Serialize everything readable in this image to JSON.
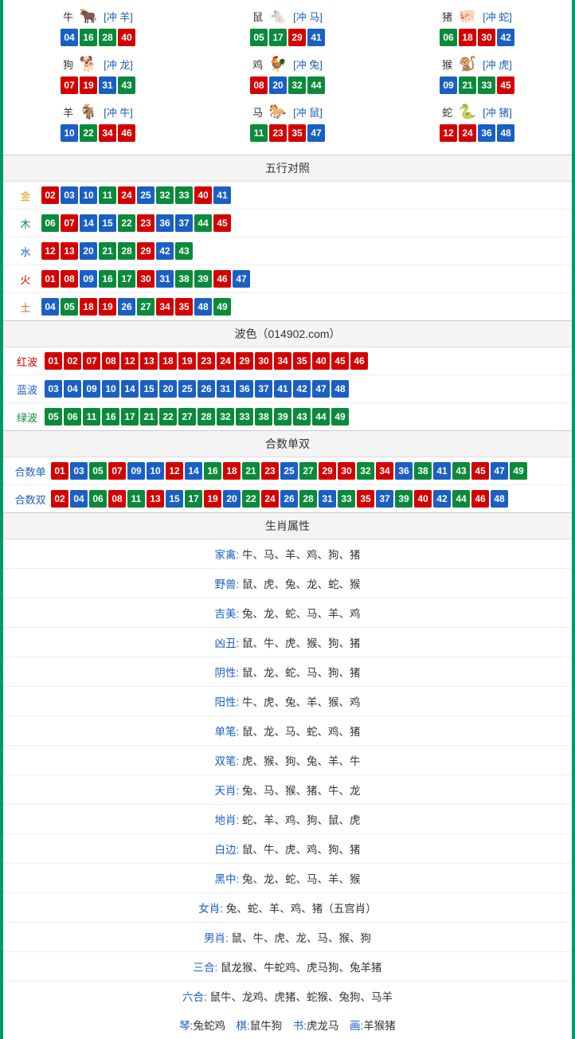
{
  "colors": {
    "border": "#009966",
    "red": "#d40000",
    "blue": "#1a5fc4",
    "green": "#0a8a3a",
    "header_bg": "#f4f4f4"
  },
  "ball_color_map": {
    "01": "red",
    "02": "red",
    "07": "red",
    "08": "red",
    "12": "red",
    "13": "red",
    "18": "red",
    "19": "red",
    "23": "red",
    "24": "red",
    "29": "red",
    "30": "red",
    "34": "red",
    "35": "red",
    "40": "red",
    "45": "red",
    "46": "red",
    "03": "blue",
    "04": "blue",
    "09": "blue",
    "10": "blue",
    "14": "blue",
    "15": "blue",
    "20": "blue",
    "25": "blue",
    "26": "blue",
    "31": "blue",
    "36": "blue",
    "37": "blue",
    "41": "blue",
    "42": "blue",
    "47": "blue",
    "48": "blue",
    "05": "green",
    "06": "green",
    "11": "green",
    "16": "green",
    "17": "green",
    "21": "green",
    "22": "green",
    "27": "green",
    "28": "green",
    "32": "green",
    "33": "green",
    "38": "green",
    "39": "green",
    "43": "green",
    "44": "green",
    "49": "green"
  },
  "zodiac": [
    {
      "name": "牛",
      "emoji": "🐂",
      "conflict": "[冲 羊]",
      "balls": [
        "04",
        "16",
        "28",
        "40"
      ]
    },
    {
      "name": "鼠",
      "emoji": "🐁",
      "conflict": "[冲 马]",
      "balls": [
        "05",
        "17",
        "29",
        "41"
      ]
    },
    {
      "name": "猪",
      "emoji": "🐖",
      "conflict": "[冲 蛇]",
      "balls": [
        "06",
        "18",
        "30",
        "42"
      ]
    },
    {
      "name": "狗",
      "emoji": "🐕",
      "conflict": "[冲 龙]",
      "balls": [
        "07",
        "19",
        "31",
        "43"
      ]
    },
    {
      "name": "鸡",
      "emoji": "🐓",
      "conflict": "[冲 兔]",
      "balls": [
        "08",
        "20",
        "32",
        "44"
      ]
    },
    {
      "name": "猴",
      "emoji": "🐒",
      "conflict": "[冲 虎]",
      "balls": [
        "09",
        "21",
        "33",
        "45"
      ]
    },
    {
      "name": "羊",
      "emoji": "🐐",
      "conflict": "[冲 牛]",
      "balls": [
        "10",
        "22",
        "34",
        "46"
      ]
    },
    {
      "name": "马",
      "emoji": "🐎",
      "conflict": "[冲 鼠]",
      "balls": [
        "11",
        "23",
        "35",
        "47"
      ]
    },
    {
      "name": "蛇",
      "emoji": "🐍",
      "conflict": "[冲 猪]",
      "balls": [
        "12",
        "24",
        "36",
        "48"
      ]
    }
  ],
  "wuxing": {
    "title": "五行对照",
    "rows": [
      {
        "label": "金",
        "cls": "lbl-gold",
        "balls": [
          "02",
          "03",
          "10",
          "11",
          "24",
          "25",
          "32",
          "33",
          "40",
          "41"
        ]
      },
      {
        "label": "木",
        "cls": "lbl-wood",
        "balls": [
          "06",
          "07",
          "14",
          "15",
          "22",
          "23",
          "36",
          "37",
          "44",
          "45"
        ]
      },
      {
        "label": "水",
        "cls": "lbl-water",
        "balls": [
          "12",
          "13",
          "20",
          "21",
          "28",
          "29",
          "42",
          "43"
        ]
      },
      {
        "label": "火",
        "cls": "lbl-fire",
        "balls": [
          "01",
          "08",
          "09",
          "16",
          "17",
          "30",
          "31",
          "38",
          "39",
          "46",
          "47"
        ]
      },
      {
        "label": "土",
        "cls": "lbl-earth",
        "balls": [
          "04",
          "05",
          "18",
          "19",
          "26",
          "27",
          "34",
          "35",
          "48",
          "49"
        ]
      }
    ]
  },
  "bose": {
    "title": "波色（014902.com）",
    "rows": [
      {
        "label": "红波",
        "cls": "lbl-red",
        "balls": [
          "01",
          "02",
          "07",
          "08",
          "12",
          "13",
          "18",
          "19",
          "23",
          "24",
          "29",
          "30",
          "34",
          "35",
          "40",
          "45",
          "46"
        ]
      },
      {
        "label": "蓝波",
        "cls": "lbl-blue",
        "balls": [
          "03",
          "04",
          "09",
          "10",
          "14",
          "15",
          "20",
          "25",
          "26",
          "31",
          "36",
          "37",
          "41",
          "42",
          "47",
          "48"
        ]
      },
      {
        "label": "绿波",
        "cls": "lbl-green",
        "balls": [
          "05",
          "06",
          "11",
          "16",
          "17",
          "21",
          "22",
          "27",
          "28",
          "32",
          "33",
          "38",
          "39",
          "43",
          "44",
          "49"
        ]
      }
    ]
  },
  "heshu": {
    "title": "合数单双",
    "rows": [
      {
        "label": "合数单",
        "cls": "lbl-blue",
        "balls": [
          "01",
          "03",
          "05",
          "07",
          "09",
          "10",
          "12",
          "14",
          "16",
          "18",
          "21",
          "23",
          "25",
          "27",
          "29",
          "30",
          "32",
          "34",
          "36",
          "38",
          "41",
          "43",
          "45",
          "47",
          "49"
        ]
      },
      {
        "label": "合数双",
        "cls": "lbl-blue",
        "balls": [
          "02",
          "04",
          "06",
          "08",
          "11",
          "13",
          "15",
          "17",
          "19",
          "20",
          "22",
          "24",
          "26",
          "28",
          "31",
          "33",
          "35",
          "37",
          "39",
          "40",
          "42",
          "44",
          "46",
          "48"
        ]
      }
    ]
  },
  "attrs": {
    "title": "生肖属性",
    "rows": [
      {
        "key": "家禽",
        "val": "牛、马、羊、鸡、狗、猪"
      },
      {
        "key": "野兽",
        "val": "鼠、虎、兔、龙、蛇、猴"
      },
      {
        "key": "吉美",
        "val": "兔、龙、蛇、马、羊、鸡"
      },
      {
        "key": "凶丑",
        "val": "鼠、牛、虎、猴、狗、猪"
      },
      {
        "key": "阴性",
        "val": "鼠、龙、蛇、马、狗、猪"
      },
      {
        "key": "阳性",
        "val": "牛、虎、兔、羊、猴、鸡"
      },
      {
        "key": "单笔",
        "val": "鼠、龙、马、蛇、鸡、猪"
      },
      {
        "key": "双笔",
        "val": "虎、猴、狗、兔、羊、牛"
      },
      {
        "key": "天肖",
        "val": "兔、马、猴、猪、牛、龙"
      },
      {
        "key": "地肖",
        "val": "蛇、羊、鸡、狗、鼠、虎"
      },
      {
        "key": "白边",
        "val": "鼠、牛、虎、鸡、狗、猪"
      },
      {
        "key": "黑中",
        "val": "兔、龙、蛇、马、羊、猴"
      },
      {
        "key": "女肖",
        "val": "兔、蛇、羊、鸡、猪（五宫肖）"
      },
      {
        "key": "男肖",
        "val": "鼠、牛、虎、龙、马、猴、狗"
      },
      {
        "key": "三合",
        "val": "鼠龙猴、牛蛇鸡、虎马狗、兔羊猪"
      },
      {
        "key": "六合",
        "val": "鼠牛、龙鸡、虎猪、蛇猴、兔狗、马羊"
      }
    ],
    "footer": {
      "parts": [
        {
          "k": "琴",
          "v": "兔蛇鸡"
        },
        {
          "k": "棋",
          "v": "鼠牛狗"
        },
        {
          "k": "书",
          "v": "虎龙马"
        },
        {
          "k": "画",
          "v": "羊猴猪"
        }
      ]
    }
  }
}
